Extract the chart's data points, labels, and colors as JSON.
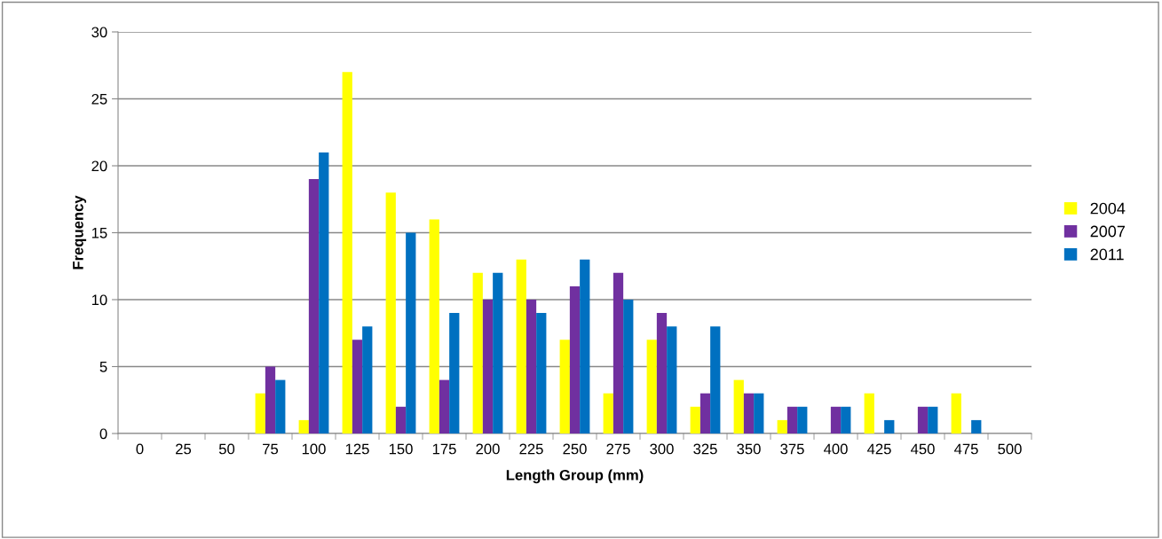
{
  "chart_data": {
    "type": "bar",
    "xlabel": "Length Group (mm)",
    "ylabel": "Frequency",
    "categories": [
      "0",
      "25",
      "50",
      "75",
      "100",
      "125",
      "150",
      "175",
      "200",
      "225",
      "250",
      "275",
      "300",
      "325",
      "350",
      "375",
      "400",
      "425",
      "450",
      "475",
      "500"
    ],
    "series": [
      {
        "name": "2004",
        "color": "#ffff00",
        "values": [
          0,
          0,
          0,
          3,
          1,
          27,
          18,
          16,
          12,
          13,
          7,
          3,
          7,
          2,
          4,
          1,
          0,
          3,
          0,
          3,
          0
        ]
      },
      {
        "name": "2007",
        "color": "#7030a0",
        "values": [
          0,
          0,
          0,
          5,
          19,
          7,
          2,
          4,
          10,
          10,
          11,
          12,
          9,
          3,
          3,
          2,
          2,
          0,
          2,
          0,
          0
        ]
      },
      {
        "name": "2011",
        "color": "#0070c0",
        "values": [
          0,
          0,
          0,
          4,
          21,
          8,
          15,
          9,
          12,
          9,
          13,
          10,
          8,
          8,
          3,
          2,
          2,
          1,
          2,
          1,
          0
        ]
      }
    ],
    "ylim": [
      0,
      30
    ],
    "yticks": [
      0,
      5,
      10,
      15,
      20,
      25,
      30
    ],
    "grid": "y",
    "legend": "right"
  }
}
